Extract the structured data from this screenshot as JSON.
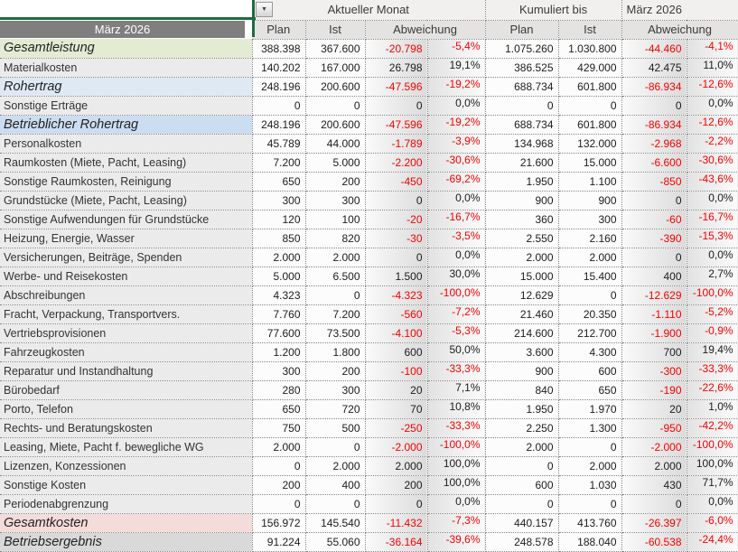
{
  "header": {
    "row_label_header": "März 2026",
    "group_current": "Aktueller Monat",
    "group_cumulative_left": "Kumuliert bis",
    "group_cumulative_right": "März 2026",
    "col_plan": "Plan",
    "col_ist": "Ist",
    "col_abweichung": "Abweichung",
    "filter_icon": "▼"
  },
  "colors": {
    "accent_green": "#1f6b41",
    "band_gray": "#7f7f7f",
    "negative_red": "#f70000",
    "row_green": "#e3ecd2",
    "row_blue": "#dee9f4",
    "row_blue_strong": "#cbddf1",
    "row_pink": "#f4dcda",
    "row_gray": "#d9d9d9"
  },
  "rows": [
    {
      "label": "Gesamtleistung",
      "style": "green",
      "cm": [
        "388.398",
        "367.600",
        "-20.798",
        "-5,4%"
      ],
      "cum": [
        "1.075.260",
        "1.030.800",
        "-44.460",
        "-4,1%"
      ]
    },
    {
      "label": "Materialkosten",
      "style": "plain",
      "cm": [
        "140.202",
        "167.000",
        "26.798",
        "19,1%"
      ],
      "cum": [
        "386.525",
        "429.000",
        "42.475",
        "11,0%"
      ]
    },
    {
      "label": "Rohertrag",
      "style": "blue",
      "cm": [
        "248.196",
        "200.600",
        "-47.596",
        "-19,2%"
      ],
      "cum": [
        "688.734",
        "601.800",
        "-86.934",
        "-12,6%"
      ]
    },
    {
      "label": "Sonstige Erträge",
      "style": "plain",
      "cm": [
        "0",
        "0",
        "0",
        "0,0%"
      ],
      "cum": [
        "0",
        "0",
        "0",
        "0,0%"
      ]
    },
    {
      "label": "Betrieblicher Rohertrag",
      "style": "blue2",
      "cm": [
        "248.196",
        "200.600",
        "-47.596",
        "-19,2%"
      ],
      "cum": [
        "688.734",
        "601.800",
        "-86.934",
        "-12,6%"
      ]
    },
    {
      "label": "Personalkosten",
      "style": "plain",
      "cm": [
        "45.789",
        "44.000",
        "-1.789",
        "-3,9%"
      ],
      "cum": [
        "134.968",
        "132.000",
        "-2.968",
        "-2,2%"
      ]
    },
    {
      "label": "Raumkosten (Miete, Pacht, Leasing)",
      "style": "plain",
      "cm": [
        "7.200",
        "5.000",
        "-2.200",
        "-30,6%"
      ],
      "cum": [
        "21.600",
        "15.000",
        "-6.600",
        "-30,6%"
      ]
    },
    {
      "label": "Sonstige Raumkosten, Reinigung",
      "style": "plain",
      "cm": [
        "650",
        "200",
        "-450",
        "-69,2%"
      ],
      "cum": [
        "1.950",
        "1.100",
        "-850",
        "-43,6%"
      ]
    },
    {
      "label": "Grundstücke (Miete, Pacht, Leasing)",
      "style": "plain",
      "cm": [
        "300",
        "300",
        "0",
        "0,0%"
      ],
      "cum": [
        "900",
        "900",
        "0",
        "0,0%"
      ]
    },
    {
      "label": "Sonstige Aufwendungen für Grundstücke",
      "style": "plain",
      "cm": [
        "120",
        "100",
        "-20",
        "-16,7%"
      ],
      "cum": [
        "360",
        "300",
        "-60",
        "-16,7%"
      ]
    },
    {
      "label": "Heizung, Energie, Wasser",
      "style": "plain",
      "cm": [
        "850",
        "820",
        "-30",
        "-3,5%"
      ],
      "cum": [
        "2.550",
        "2.160",
        "-390",
        "-15,3%"
      ]
    },
    {
      "label": "Versicherungen, Beiträge, Spenden",
      "style": "plain",
      "cm": [
        "2.000",
        "2.000",
        "0",
        "0,0%"
      ],
      "cum": [
        "2.000",
        "2.000",
        "0",
        "0,0%"
      ]
    },
    {
      "label": "Werbe- und Reisekosten",
      "style": "plain",
      "cm": [
        "5.000",
        "6.500",
        "1.500",
        "30,0%"
      ],
      "cum": [
        "15.000",
        "15.400",
        "400",
        "2,7%"
      ]
    },
    {
      "label": "Abschreibungen",
      "style": "plain",
      "cm": [
        "4.323",
        "0",
        "-4.323",
        "-100,0%"
      ],
      "cum": [
        "12.629",
        "0",
        "-12.629",
        "-100,0%"
      ]
    },
    {
      "label": "Fracht, Verpackung, Transportvers.",
      "style": "plain",
      "cm": [
        "7.760",
        "7.200",
        "-560",
        "-7,2%"
      ],
      "cum": [
        "21.460",
        "20.350",
        "-1.110",
        "-5,2%"
      ]
    },
    {
      "label": "Vertriebsprovisionen",
      "style": "plain",
      "cm": [
        "77.600",
        "73.500",
        "-4.100",
        "-5,3%"
      ],
      "cum": [
        "214.600",
        "212.700",
        "-1.900",
        "-0,9%"
      ]
    },
    {
      "label": "Fahrzeugkosten",
      "style": "plain",
      "cm": [
        "1.200",
        "1.800",
        "600",
        "50,0%"
      ],
      "cum": [
        "3.600",
        "4.300",
        "700",
        "19,4%"
      ]
    },
    {
      "label": "Reparatur und Instandhaltung",
      "style": "plain",
      "cm": [
        "300",
        "200",
        "-100",
        "-33,3%"
      ],
      "cum": [
        "900",
        "600",
        "-300",
        "-33,3%"
      ]
    },
    {
      "label": "Bürobedarf",
      "style": "plain",
      "cm": [
        "280",
        "300",
        "20",
        "7,1%"
      ],
      "cum": [
        "840",
        "650",
        "-190",
        "-22,6%"
      ]
    },
    {
      "label": "Porto, Telefon",
      "style": "plain",
      "cm": [
        "650",
        "720",
        "70",
        "10,8%"
      ],
      "cum": [
        "1.950",
        "1.970",
        "20",
        "1,0%"
      ]
    },
    {
      "label": "Rechts- und Beratungskosten",
      "style": "plain",
      "cm": [
        "750",
        "500",
        "-250",
        "-33,3%"
      ],
      "cum": [
        "2.250",
        "1.300",
        "-950",
        "-42,2%"
      ]
    },
    {
      "label": "Leasing, Miete, Pacht f. bewegliche WG",
      "style": "plain",
      "cm": [
        "2.000",
        "0",
        "-2.000",
        "-100,0%"
      ],
      "cum": [
        "2.000",
        "0",
        "-2.000",
        "-100,0%"
      ]
    },
    {
      "label": "Lizenzen, Konzessionen",
      "style": "plain",
      "cm": [
        "0",
        "2.000",
        "2.000",
        "100,0%"
      ],
      "cum": [
        "0",
        "2.000",
        "2.000",
        "100,0%"
      ]
    },
    {
      "label": "Sonstige Kosten",
      "style": "plain",
      "cm": [
        "200",
        "400",
        "200",
        "100,0%"
      ],
      "cum": [
        "600",
        "1.030",
        "430",
        "71,7%"
      ]
    },
    {
      "label": "Periodenabgrenzung",
      "style": "plain",
      "cm": [
        "0",
        "0",
        "0",
        "0,0%"
      ],
      "cum": [
        "0",
        "0",
        "0",
        "0,0%"
      ]
    },
    {
      "label": "Gesamtkosten",
      "style": "pink",
      "cm": [
        "156.972",
        "145.540",
        "-11.432",
        "-7,3%"
      ],
      "cum": [
        "440.157",
        "413.760",
        "-26.397",
        "-6,0%"
      ]
    },
    {
      "label": "Betriebsergebnis",
      "style": "gray",
      "cm": [
        "91.224",
        "55.060",
        "-36.164",
        "-39,6%"
      ],
      "cum": [
        "248.578",
        "188.040",
        "-60.538",
        "-24,4%"
      ]
    }
  ]
}
